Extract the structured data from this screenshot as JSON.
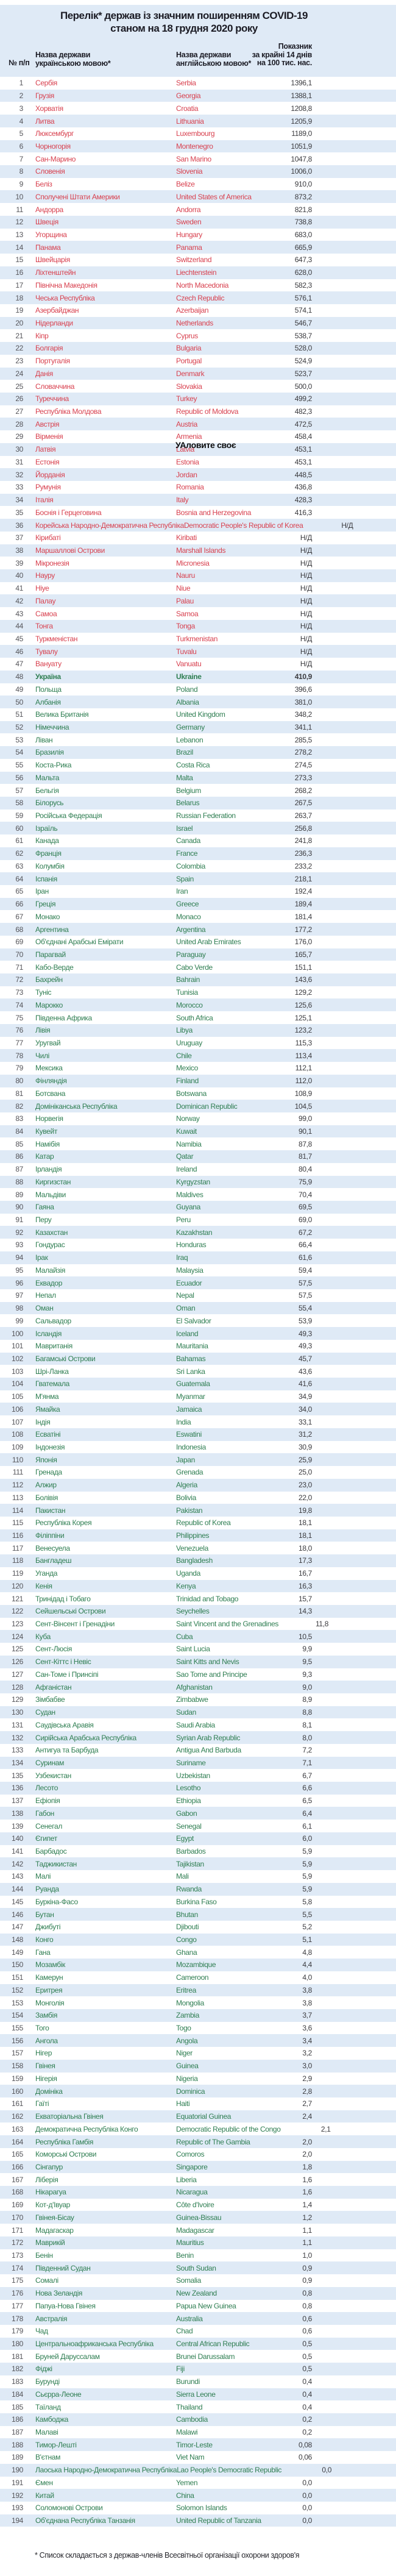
{
  "title": {
    "line1": "Перелік* держав із значним поширенням COVID-19",
    "line2": "станом на 18 грудня 2020 року"
  },
  "columns": {
    "num": "№ п/п",
    "uk_line1": "Назва держави",
    "uk_line2": "українською мовою*",
    "en_line1": "Назва держави",
    "en_line2": "англійською мовою*",
    "val_line1": "Показник",
    "val_line2": "за крайні 14 днів",
    "val_line3": "на 100 тис. нас."
  },
  "footnote": "* Список складається з держав-членів Всесвітньої організації охорони здоров'я",
  "watermark": "УАловите своє",
  "no_data_label": "Н/Д",
  "ukraine_row": 48,
  "colors": {
    "red_zone": "#d8414f",
    "green_zone": "#2f7e52",
    "band": "#dfeaf6",
    "value": "#3b3b3f",
    "header": "#1b1b24"
  },
  "rows": [
    {
      "n": 1,
      "uk": "Сербія",
      "en": "Serbia",
      "v": "1396,1"
    },
    {
      "n": 2,
      "uk": "Грузія",
      "en": "Georgia",
      "v": "1388,1"
    },
    {
      "n": 3,
      "uk": "Хорватія",
      "en": "Croatia",
      "v": "1208,8"
    },
    {
      "n": 4,
      "uk": "Литва",
      "en": "Lithuania",
      "v": "1205,9"
    },
    {
      "n": 5,
      "uk": "Люксембург",
      "en": "Luxembourg",
      "v": "1189,0"
    },
    {
      "n": 6,
      "uk": "Чорногорія",
      "en": "Montenegro",
      "v": "1051,9"
    },
    {
      "n": 7,
      "uk": "Сан-Марино",
      "en": "San Marino",
      "v": "1047,8"
    },
    {
      "n": 8,
      "uk": "Словенія",
      "en": "Slovenia",
      "v": "1006,0"
    },
    {
      "n": 9,
      "uk": "Беліз",
      "en": "Belize",
      "v": "910,0"
    },
    {
      "n": 10,
      "uk": "Сполучені Штати Америки",
      "en": "United States of America",
      "v": "873,2"
    },
    {
      "n": 11,
      "uk": "Андорра",
      "en": "Andorra",
      "v": "821,8"
    },
    {
      "n": 12,
      "uk": "Швеція",
      "en": "Sweden",
      "v": "738,8"
    },
    {
      "n": 13,
      "uk": "Угорщина",
      "en": "Hungary",
      "v": "683,0"
    },
    {
      "n": 14,
      "uk": "Панама",
      "en": "Panama",
      "v": "665,9"
    },
    {
      "n": 15,
      "uk": "Швейцарія",
      "en": "Switzerland",
      "v": "647,3"
    },
    {
      "n": 16,
      "uk": "Ліхтенштейн",
      "en": "Liechtenstein",
      "v": "628,0"
    },
    {
      "n": 17,
      "uk": "Північна Македонія",
      "en": "North Macedonia",
      "v": "582,3"
    },
    {
      "n": 18,
      "uk": "Чеська Республіка",
      "en": "Czech Republic",
      "v": "576,1"
    },
    {
      "n": 19,
      "uk": "Азербайджан",
      "en": "Azerbaijan",
      "v": "574,1"
    },
    {
      "n": 20,
      "uk": "Нідерланди",
      "en": "Netherlands",
      "v": "546,7"
    },
    {
      "n": 21,
      "uk": "Кіпр",
      "en": "Cyprus",
      "v": "538,7"
    },
    {
      "n": 22,
      "uk": "Болгарія",
      "en": "Bulgaria",
      "v": "528,0"
    },
    {
      "n": 23,
      "uk": "Португалія",
      "en": "Portugal",
      "v": "524,9"
    },
    {
      "n": 24,
      "uk": "Данія",
      "en": "Denmark",
      "v": "523,7"
    },
    {
      "n": 25,
      "uk": "Словаччина",
      "en": "Slovakia",
      "v": "500,0"
    },
    {
      "n": 26,
      "uk": "Туреччина",
      "en": "Turkey",
      "v": "499,2"
    },
    {
      "n": 27,
      "uk": "Республіка Молдова",
      "en": "Republic of Moldova",
      "v": "482,3"
    },
    {
      "n": 28,
      "uk": "Австрія",
      "en": "Austria",
      "v": "472,5"
    },
    {
      "n": 29,
      "uk": "Вірменія",
      "en": "Armenia",
      "v": "458,4"
    },
    {
      "n": 30,
      "uk": "Латвія",
      "en": "Latvia",
      "v": "453,1"
    },
    {
      "n": 31,
      "uk": "Естонія",
      "en": "Estonia",
      "v": "453,1"
    },
    {
      "n": 32,
      "uk": "Йорданія",
      "en": "Jordan",
      "v": "448,5"
    },
    {
      "n": 33,
      "uk": "Румунія",
      "en": "Romania",
      "v": "436,8"
    },
    {
      "n": 34,
      "uk": "Італія",
      "en": "Italy",
      "v": "428,3"
    },
    {
      "n": 35,
      "uk": "Боснія і Герцеговина",
      "en": "Bosnia and Herzegovina",
      "v": "416,3"
    },
    {
      "n": 36,
      "uk": "Корейська Народно-Демократична Республіка",
      "en": "Democratic People's Republic of Korea",
      "v": "Н/Д"
    },
    {
      "n": 37,
      "uk": "Кірибаті",
      "en": "Kiribati",
      "v": "Н/Д"
    },
    {
      "n": 38,
      "uk": "Маршаллові Острови",
      "en": "Marshall Islands",
      "v": "Н/Д"
    },
    {
      "n": 39,
      "uk": "Мікронезія",
      "en": "Micronesia",
      "v": "Н/Д"
    },
    {
      "n": 40,
      "uk": "Науру",
      "en": "Nauru",
      "v": "Н/Д"
    },
    {
      "n": 41,
      "uk": "Ніуе",
      "en": "Niue",
      "v": "Н/Д"
    },
    {
      "n": 42,
      "uk": "Палау",
      "en": "Palau",
      "v": "Н/Д"
    },
    {
      "n": 43,
      "uk": "Самоа",
      "en": "Samoa",
      "v": "Н/Д"
    },
    {
      "n": 44,
      "uk": "Тонга",
      "en": "Tonga",
      "v": "Н/Д"
    },
    {
      "n": 45,
      "uk": "Туркменістан",
      "en": "Turkmenistan",
      "v": "Н/Д"
    },
    {
      "n": 46,
      "uk": "Тувалу",
      "en": "Tuvalu",
      "v": "Н/Д"
    },
    {
      "n": 47,
      "uk": "Вануату",
      "en": "Vanuatu",
      "v": "Н/Д"
    },
    {
      "n": 48,
      "uk": "Україна",
      "en": "Ukraine",
      "v": "410,9"
    },
    {
      "n": 49,
      "uk": "Польща",
      "en": "Poland",
      "v": "396,6"
    },
    {
      "n": 50,
      "uk": "Албанія",
      "en": "Albania",
      "v": "381,0"
    },
    {
      "n": 51,
      "uk": "Велика Британія",
      "en": "United Kingdom",
      "v": "348,2"
    },
    {
      "n": 52,
      "uk": "Німеччина",
      "en": "Germany",
      "v": "341,1"
    },
    {
      "n": 53,
      "uk": "Ліван",
      "en": "Lebanon",
      "v": "285,5"
    },
    {
      "n": 54,
      "uk": "Бразилія",
      "en": "Brazil",
      "v": "278,2"
    },
    {
      "n": 55,
      "uk": "Коста-Рика",
      "en": "Costa Rica",
      "v": "274,5"
    },
    {
      "n": 56,
      "uk": "Мальта",
      "en": "Malta",
      "v": "273,3"
    },
    {
      "n": 57,
      "uk": "Бельгія",
      "en": "Belgium",
      "v": "268,2"
    },
    {
      "n": 58,
      "uk": "Білорусь",
      "en": "Belarus",
      "v": "267,5"
    },
    {
      "n": 59,
      "uk": "Російська Федерація",
      "en": "Russian Federation",
      "v": "263,7"
    },
    {
      "n": 60,
      "uk": "Ізраїль",
      "en": "Israel",
      "v": "256,8"
    },
    {
      "n": 61,
      "uk": "Канада",
      "en": "Canada",
      "v": "241,8"
    },
    {
      "n": 62,
      "uk": "Франція",
      "en": "France",
      "v": "236,3"
    },
    {
      "n": 63,
      "uk": "Колумбія",
      "en": "Colombia",
      "v": "233,2"
    },
    {
      "n": 64,
      "uk": "Іспанія",
      "en": "Spain",
      "v": "218,1"
    },
    {
      "n": 65,
      "uk": "Іран",
      "en": "Iran",
      "v": "192,4"
    },
    {
      "n": 66,
      "uk": "Греція",
      "en": "Greece",
      "v": "189,4"
    },
    {
      "n": 67,
      "uk": "Монако",
      "en": "Monaco",
      "v": "181,4"
    },
    {
      "n": 68,
      "uk": "Аргентина",
      "en": "Argentina",
      "v": "177,2"
    },
    {
      "n": 69,
      "uk": "Об'єднані Арабські Емірати",
      "en": "United Arab Emirates",
      "v": "176,0"
    },
    {
      "n": 70,
      "uk": "Парагвай",
      "en": "Paraguay",
      "v": "165,7"
    },
    {
      "n": 71,
      "uk": "Кабо-Верде",
      "en": "Cabo Verde",
      "v": "151,1"
    },
    {
      "n": 72,
      "uk": "Бахрейн",
      "en": "Bahrain",
      "v": "143,6"
    },
    {
      "n": 73,
      "uk": "Туніс",
      "en": "Tunisia",
      "v": "129,2"
    },
    {
      "n": 74,
      "uk": "Марокко",
      "en": "Morocco",
      "v": "125,6"
    },
    {
      "n": 75,
      "uk": "Південна Африка",
      "en": "South Africa",
      "v": "125,1"
    },
    {
      "n": 76,
      "uk": "Лівія",
      "en": "Libya",
      "v": "123,2"
    },
    {
      "n": 77,
      "uk": "Уругвай",
      "en": "Uruguay",
      "v": "115,3"
    },
    {
      "n": 78,
      "uk": "Чилі",
      "en": "Chile",
      "v": "113,4"
    },
    {
      "n": 79,
      "uk": "Мексика",
      "en": "Mexico",
      "v": "112,1"
    },
    {
      "n": 80,
      "uk": "Фінляндія",
      "en": "Finland",
      "v": "112,0"
    },
    {
      "n": 81,
      "uk": "Ботсвана",
      "en": "Botswana",
      "v": "108,9"
    },
    {
      "n": 82,
      "uk": "Домініканська Республіка",
      "en": "Dominican Republic",
      "v": "104,5"
    },
    {
      "n": 83,
      "uk": "Норвегія",
      "en": "Norway",
      "v": "99,0"
    },
    {
      "n": 84,
      "uk": "Кувейт",
      "en": "Kuwait",
      "v": "90,1"
    },
    {
      "n": 85,
      "uk": "Намібія",
      "en": "Namibia",
      "v": "87,8"
    },
    {
      "n": 86,
      "uk": "Катар",
      "en": "Qatar",
      "v": "81,7"
    },
    {
      "n": 87,
      "uk": "Ірландія",
      "en": "Ireland",
      "v": "80,4"
    },
    {
      "n": 88,
      "uk": "Киргизстан",
      "en": "Kyrgyzstan",
      "v": "75,9"
    },
    {
      "n": 89,
      "uk": "Мальдіви",
      "en": "Maldives",
      "v": "70,4"
    },
    {
      "n": 90,
      "uk": "Гаяна",
      "en": "Guyana",
      "v": "69,5"
    },
    {
      "n": 91,
      "uk": "Перу",
      "en": "Peru",
      "v": "69,0"
    },
    {
      "n": 92,
      "uk": "Казахстан",
      "en": "Kazakhstan",
      "v": "67,2"
    },
    {
      "n": 93,
      "uk": "Гондурас",
      "en": "Honduras",
      "v": "66,4"
    },
    {
      "n": 94,
      "uk": "Ірак",
      "en": "Iraq",
      "v": "61,6"
    },
    {
      "n": 95,
      "uk": "Малайзія",
      "en": "Malaysia",
      "v": "59,4"
    },
    {
      "n": 96,
      "uk": "Еквадор",
      "en": "Ecuador",
      "v": "57,5"
    },
    {
      "n": 97,
      "uk": "Непал",
      "en": "Nepal",
      "v": "57,5"
    },
    {
      "n": 98,
      "uk": "Оман",
      "en": "Oman",
      "v": "55,4"
    },
    {
      "n": 99,
      "uk": "Сальвадор",
      "en": "El Salvador",
      "v": "53,9"
    },
    {
      "n": 100,
      "uk": "Ісландія",
      "en": "Iceland",
      "v": "49,3"
    },
    {
      "n": 101,
      "uk": "Мавританія",
      "en": "Mauritania",
      "v": "49,3"
    },
    {
      "n": 102,
      "uk": "Багамські Острови",
      "en": "Bahamas",
      "v": "45,7"
    },
    {
      "n": 103,
      "uk": "Шрі-Ланка",
      "en": "Sri Lanka",
      "v": "43,6"
    },
    {
      "n": 104,
      "uk": "Гватемала",
      "en": "Guatemala",
      "v": "41,6"
    },
    {
      "n": 105,
      "uk": "М'янма",
      "en": "Myanmar",
      "v": "34,9"
    },
    {
      "n": 106,
      "uk": "Ямайка",
      "en": "Jamaica",
      "v": "34,0"
    },
    {
      "n": 107,
      "uk": "Індія",
      "en": "India",
      "v": "33,1"
    },
    {
      "n": 108,
      "uk": "Есватіні",
      "en": "Eswatini",
      "v": "31,2"
    },
    {
      "n": 109,
      "uk": "Індонезія",
      "en": "Indonesia",
      "v": "30,9"
    },
    {
      "n": 110,
      "uk": "Японія",
      "en": "Japan",
      "v": "25,9"
    },
    {
      "n": 111,
      "uk": "Гренада",
      "en": "Grenada",
      "v": "25,0"
    },
    {
      "n": 112,
      "uk": "Алжир",
      "en": "Algeria",
      "v": "23,0"
    },
    {
      "n": 113,
      "uk": "Болівія",
      "en": "Bolivia",
      "v": "22,0"
    },
    {
      "n": 114,
      "uk": "Пакистан",
      "en": "Pakistan",
      "v": "19,8"
    },
    {
      "n": 115,
      "uk": "Республіка Корея",
      "en": "Republic of Korea",
      "v": "18,1"
    },
    {
      "n": 116,
      "uk": "Філіппіни",
      "en": "Philippines",
      "v": "18,1"
    },
    {
      "n": 117,
      "uk": "Венесуела",
      "en": "Venezuela",
      "v": "18,0"
    },
    {
      "n": 118,
      "uk": "Бангладеш",
      "en": "Bangladesh",
      "v": "17,3"
    },
    {
      "n": 119,
      "uk": "Уганда",
      "en": "Uganda",
      "v": "16,7"
    },
    {
      "n": 120,
      "uk": "Кенія",
      "en": "Kenya",
      "v": "16,3"
    },
    {
      "n": 121,
      "uk": "Тринідад і Тобаго",
      "en": "Trinidad and Tobago",
      "v": "15,7"
    },
    {
      "n": 122,
      "uk": "Сейшельські Острови",
      "en": "Seychelles",
      "v": "14,3"
    },
    {
      "n": 123,
      "uk": "Сент-Вінсент і Гренадіни",
      "en": "Saint Vincent and the Grenadines",
      "v": "11,8"
    },
    {
      "n": 124,
      "uk": "Куба",
      "en": "Cuba",
      "v": "10,5"
    },
    {
      "n": 125,
      "uk": "Сент-Люсія",
      "en": "Saint Lucia",
      "v": "9,9"
    },
    {
      "n": 126,
      "uk": "Сент-Кіттс і Невіс",
      "en": "Saint Kitts and Nevis",
      "v": "9,5"
    },
    {
      "n": 127,
      "uk": "Сан-Томе і Принсіпі",
      "en": "Sao Tome and Principe",
      "v": "9,3"
    },
    {
      "n": 128,
      "uk": "Афганістан",
      "en": "Afghanistan",
      "v": "9,0"
    },
    {
      "n": 129,
      "uk": "Зімбабве",
      "en": "Zimbabwe",
      "v": "8,9"
    },
    {
      "n": 130,
      "uk": "Судан",
      "en": "Sudan",
      "v": "8,8"
    },
    {
      "n": 131,
      "uk": "Саудівська Аравія",
      "en": "Saudi Arabia",
      "v": "8,1"
    },
    {
      "n": 132,
      "uk": "Сирійська Арабська Республіка",
      "en": "Syrian Arab Republic",
      "v": "8,0"
    },
    {
      "n": 133,
      "uk": "Антигуа та Барбуда",
      "en": "Antigua And Barbuda",
      "v": "7,2"
    },
    {
      "n": 134,
      "uk": "Суринам",
      "en": "Suriname",
      "v": "7,1"
    },
    {
      "n": 135,
      "uk": "Узбекистан",
      "en": "Uzbekistan",
      "v": "6,7"
    },
    {
      "n": 136,
      "uk": "Лесото",
      "en": "Lesotho",
      "v": "6,6"
    },
    {
      "n": 137,
      "uk": "Ефіопія",
      "en": "Ethiopia",
      "v": "6,5"
    },
    {
      "n": 138,
      "uk": "Габон",
      "en": "Gabon",
      "v": "6,4"
    },
    {
      "n": 139,
      "uk": "Сенегал",
      "en": "Senegal",
      "v": "6,1"
    },
    {
      "n": 140,
      "uk": "Єгипет",
      "en": "Egypt",
      "v": "6,0"
    },
    {
      "n": 141,
      "uk": "Барбадос",
      "en": "Barbados",
      "v": "5,9"
    },
    {
      "n": 142,
      "uk": "Таджикистан",
      "en": "Tajikistan",
      "v": "5,9"
    },
    {
      "n": 143,
      "uk": "Малі",
      "en": "Mali",
      "v": "5,9"
    },
    {
      "n": 144,
      "uk": "Руанда",
      "en": "Rwanda",
      "v": "5,9"
    },
    {
      "n": 145,
      "uk": "Буркіна-Фасо",
      "en": "Burkina Faso",
      "v": "5,8"
    },
    {
      "n": 146,
      "uk": "Бутан",
      "en": "Bhutan",
      "v": "5,5"
    },
    {
      "n": 147,
      "uk": "Джибуті",
      "en": "Djibouti",
      "v": "5,2"
    },
    {
      "n": 148,
      "uk": "Конго",
      "en": "Congo",
      "v": "5,1"
    },
    {
      "n": 149,
      "uk": "Гана",
      "en": "Ghana",
      "v": "4,8"
    },
    {
      "n": 150,
      "uk": "Мозамбік",
      "en": "Mozambique",
      "v": "4,4"
    },
    {
      "n": 151,
      "uk": "Камерун",
      "en": "Cameroon",
      "v": "4,0"
    },
    {
      "n": 152,
      "uk": "Еритрея",
      "en": "Eritrea",
      "v": "3,8"
    },
    {
      "n": 153,
      "uk": "Монголія",
      "en": "Mongolia",
      "v": "3,8"
    },
    {
      "n": 154,
      "uk": "Замбія",
      "en": "Zambia",
      "v": "3,7"
    },
    {
      "n": 155,
      "uk": "Того",
      "en": "Togo",
      "v": "3,6"
    },
    {
      "n": 156,
      "uk": "Ангола",
      "en": "Angola",
      "v": "3,4"
    },
    {
      "n": 157,
      "uk": "Нігер",
      "en": "Niger",
      "v": "3,2"
    },
    {
      "n": 158,
      "uk": "Гвінея",
      "en": "Guinea",
      "v": "3,0"
    },
    {
      "n": 159,
      "uk": "Нігерія",
      "en": "Nigeria",
      "v": "2,9"
    },
    {
      "n": 160,
      "uk": "Домініка",
      "en": "Dominica",
      "v": "2,8"
    },
    {
      "n": 161,
      "uk": "Гаїті",
      "en": "Haiti",
      "v": "2,7"
    },
    {
      "n": 162,
      "uk": "Екваторіальна Гвінея",
      "en": "Equatorial Guinea",
      "v": "2,4"
    },
    {
      "n": 163,
      "uk": "Демократична Республіка Конго",
      "en": "Democratic Republic of the Congo",
      "v": "2,1"
    },
    {
      "n": 164,
      "uk": "Республіка Гамбія",
      "en": "Republic of The Gambia",
      "v": "2,0"
    },
    {
      "n": 165,
      "uk": "Коморські Острови",
      "en": "Comoros",
      "v": "2,0"
    },
    {
      "n": 166,
      "uk": "Сінгапур",
      "en": "Singapore",
      "v": "1,8"
    },
    {
      "n": 167,
      "uk": "Ліберія",
      "en": "Liberia",
      "v": "1,6"
    },
    {
      "n": 168,
      "uk": "Нікарагуа",
      "en": "Nicaragua",
      "v": "1,6"
    },
    {
      "n": 169,
      "uk": "Кот-д'Івуар",
      "en": "Côte d'Ivoire",
      "v": "1,4"
    },
    {
      "n": 170,
      "uk": "Гвінея-Бісау",
      "en": "Guinea-Bissau",
      "v": "1,2"
    },
    {
      "n": 171,
      "uk": "Мадагаскар",
      "en": "Madagascar",
      "v": "1,1"
    },
    {
      "n": 172,
      "uk": "Маврикій",
      "en": "Mauritius",
      "v": "1,1"
    },
    {
      "n": 173,
      "uk": "Бенін",
      "en": "Benin",
      "v": "1,0"
    },
    {
      "n": 174,
      "uk": "Південний Судан",
      "en": "South Sudan",
      "v": "0,9"
    },
    {
      "n": 175,
      "uk": "Сомалі",
      "en": "Somalia",
      "v": "0,9"
    },
    {
      "n": 176,
      "uk": "Нова Зеландія",
      "en": "New Zealand",
      "v": "0,8"
    },
    {
      "n": 177,
      "uk": "Папуа-Нова Гвінея",
      "en": "Papua New Guinea",
      "v": "0,8"
    },
    {
      "n": 178,
      "uk": "Австралія",
      "en": "Australia",
      "v": "0,6"
    },
    {
      "n": 179,
      "uk": "Чад",
      "en": "Chad",
      "v": "0,6"
    },
    {
      "n": 180,
      "uk": "Центральноафриканська Республіка",
      "en": "Central African Republic",
      "v": "0,5"
    },
    {
      "n": 181,
      "uk": "Бруней Даруссалам",
      "en": "Brunei Darussalam",
      "v": "0,5"
    },
    {
      "n": 182,
      "uk": "Фіджі",
      "en": "Fiji",
      "v": "0,5"
    },
    {
      "n": 183,
      "uk": "Бурунді",
      "en": "Burundi",
      "v": "0,4"
    },
    {
      "n": 184,
      "uk": "Сьєрра-Леоне",
      "en": "Sierra Leone",
      "v": "0,4"
    },
    {
      "n": 185,
      "uk": "Таїланд",
      "en": "Thailand",
      "v": "0,4"
    },
    {
      "n": 186,
      "uk": "Камбоджа",
      "en": "Cambodia",
      "v": "0,2"
    },
    {
      "n": 187,
      "uk": "Малаві",
      "en": "Malawi",
      "v": "0,2"
    },
    {
      "n": 188,
      "uk": "Тимор-Лешті",
      "en": "Timor-Leste",
      "v": "0,08"
    },
    {
      "n": 189,
      "uk": "В'єтнам",
      "en": "Viet Nam",
      "v": "0,06"
    },
    {
      "n": 190,
      "uk": "Лаоська Народно-Демократична Республіка",
      "en": "Lao People's Democratic Republic",
      "v": "0,0"
    },
    {
      "n": 191,
      "uk": "Ємен",
      "en": "Yemen",
      "v": "0,0"
    },
    {
      "n": 192,
      "uk": "Китай",
      "en": "China",
      "v": "0,0"
    },
    {
      "n": 193,
      "uk": "Соломонові Острови",
      "en": "Solomon Islands",
      "v": "0,0"
    },
    {
      "n": 194,
      "uk": "Об'єднана Республіка Танзанія",
      "en": "United Republic of Tanzania",
      "v": "0,0"
    }
  ]
}
